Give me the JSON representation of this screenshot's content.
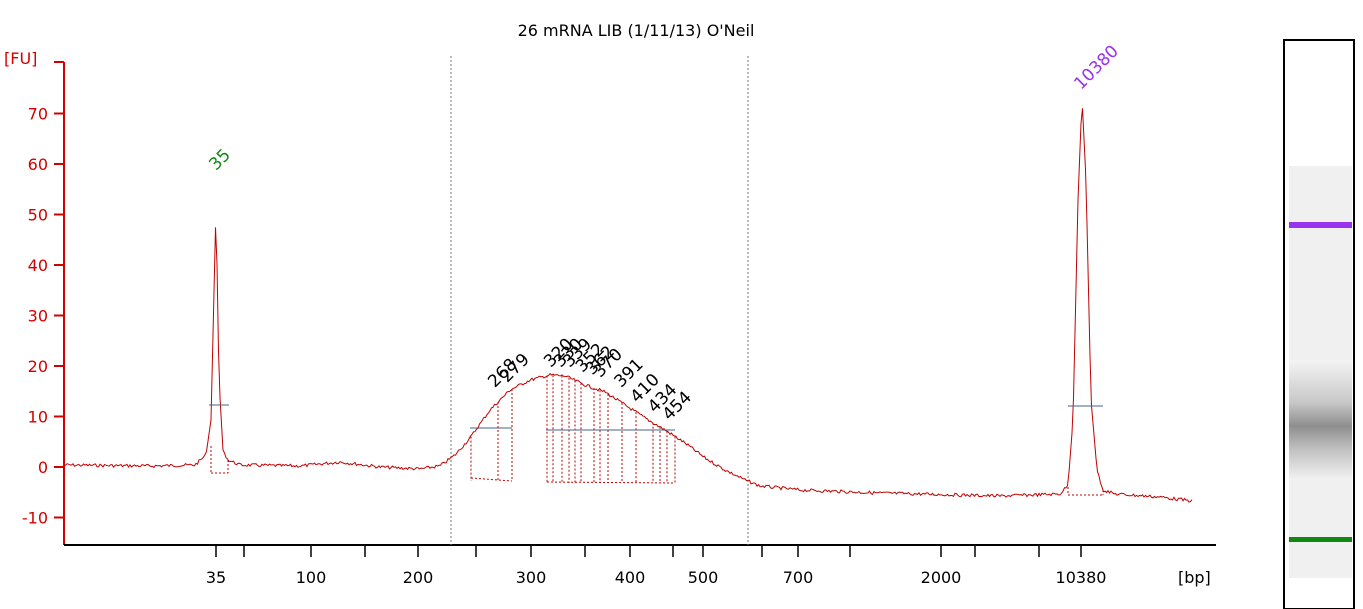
{
  "chart_data": {
    "type": "line",
    "title": "26 mRNA LIB (1/11/13) O'Neil",
    "y_unit_label": "[FU]",
    "x_unit_label": "[bp]",
    "ylim": [
      -15,
      82
    ],
    "y_ticks": [
      70,
      60,
      50,
      40,
      30,
      20,
      10,
      0,
      -10
    ],
    "x_tick_labels": [
      "35",
      "100",
      "200",
      "300",
      "400",
      "500",
      "700",
      "2000",
      "10380"
    ],
    "series_color": "#c00000",
    "region_marker_bp": [
      230,
      600
    ],
    "peaks": [
      {
        "label": "35",
        "bp": 35,
        "fu": 57,
        "color": "#118811"
      },
      {
        "label": "10380",
        "bp": 10380,
        "fu": 73,
        "color": "#9933ee"
      },
      {
        "label": "268",
        "bp": 268,
        "fu": 14
      },
      {
        "label": "279",
        "bp": 279,
        "fu": 15
      },
      {
        "label": "320",
        "bp": 320,
        "fu": 18
      },
      {
        "label": "330",
        "bp": 330,
        "fu": 18
      },
      {
        "label": "339",
        "bp": 339,
        "fu": 18
      },
      {
        "label": "352",
        "bp": 352,
        "fu": 17
      },
      {
        "label": "362",
        "bp": 362,
        "fu": 16.5
      },
      {
        "label": "370",
        "bp": 370,
        "fu": 16
      },
      {
        "label": "391",
        "bp": 391,
        "fu": 14
      },
      {
        "label": "410",
        "bp": 410,
        "fu": 11
      },
      {
        "label": "434",
        "bp": 434,
        "fu": 9
      },
      {
        "label": "454",
        "bp": 454,
        "fu": 7.5
      }
    ],
    "gel_bands": [
      {
        "name": "upper-marker",
        "color": "#9933ee"
      },
      {
        "name": "library-smear",
        "color": "#909090"
      },
      {
        "name": "lower-marker",
        "color": "#118811"
      }
    ]
  }
}
